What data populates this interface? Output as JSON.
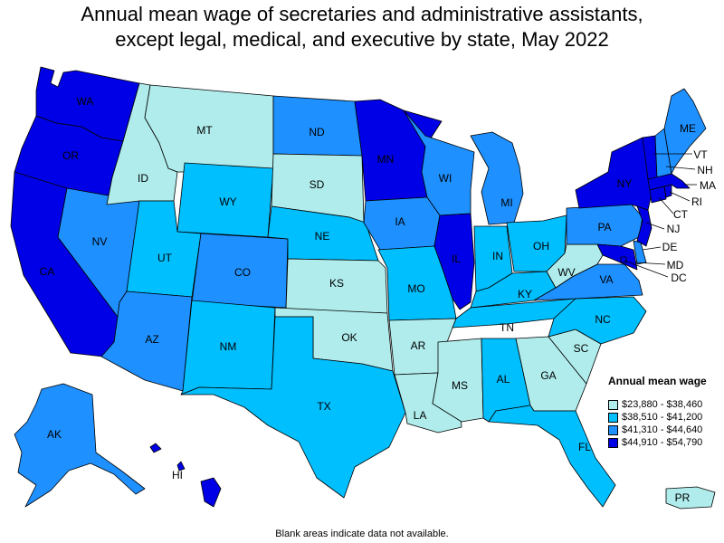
{
  "title_line1": "Annual mean wage of secretaries and administrative assistants,",
  "title_line2": "except legal, medical, and executive by state, May 2022",
  "legend": {
    "title": "Annual mean wage",
    "items": [
      {
        "label": "$23,880 - $38,460",
        "color": "#b0ecec"
      },
      {
        "label": "$38,510 - $41,200",
        "color": "#00bfff"
      },
      {
        "label": "$41,310 - $44,640",
        "color": "#1e90ff"
      },
      {
        "label": "$44,910 - $54,790",
        "color": "#0000e6"
      }
    ]
  },
  "footnote": "Blank areas indicate data not available.",
  "states": {
    "WA": 3,
    "OR": 3,
    "CA": 3,
    "NV": 2,
    "ID": 0,
    "MT": 0,
    "WY": 1,
    "UT": 1,
    "AZ": 2,
    "CO": 2,
    "NM": 1,
    "ND": 2,
    "SD": 0,
    "NE": 1,
    "KS": 0,
    "OK": 0,
    "TX": 1,
    "MN": 3,
    "IA": 2,
    "MO": 1,
    "AR": 0,
    "LA": 0,
    "WI": 2,
    "IL": 3,
    "MI": 2,
    "IN": 1,
    "OH": 1,
    "KY": 1,
    "TN": 1,
    "MS": 0,
    "AL": 1,
    "GA": 0,
    "FL": 1,
    "SC": 0,
    "NC": 1,
    "VA": 2,
    "WV": 0,
    "PA": 2,
    "NY": 3,
    "VT": 3,
    "NH": 2,
    "ME": 2,
    "MA": 3,
    "RI": 3,
    "CT": 3,
    "NJ": 3,
    "DE": 2,
    "MD": 3,
    "DC": 3,
    "AK": 2,
    "HI": 3,
    "PR": 0
  }
}
